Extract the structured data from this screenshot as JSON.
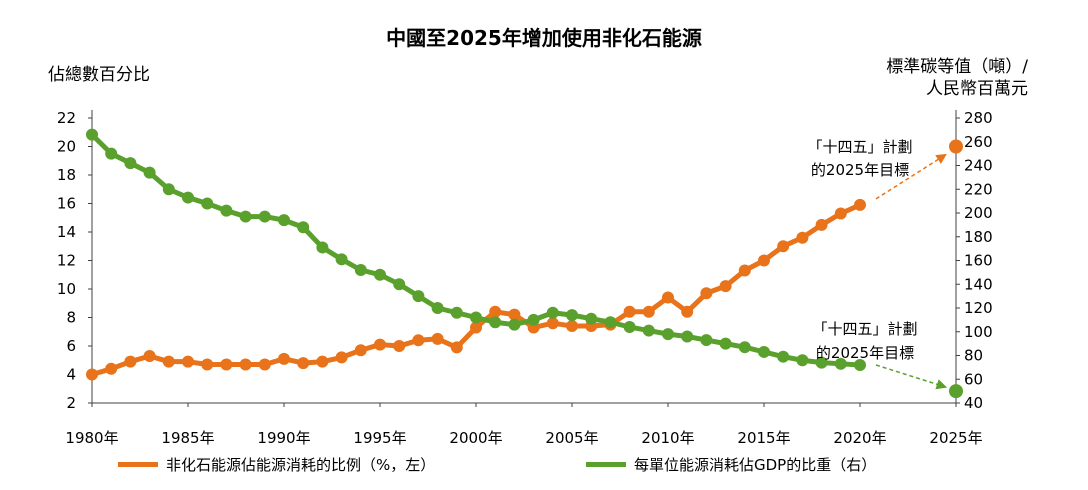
{
  "chart_data": {
    "type": "line",
    "title": "中國至2025年增加使用非化石能源",
    "ylabel_left": "佔總數百分比",
    "ylabel_right_line1": "標準碳等值（噸）/",
    "ylabel_right_line2": "人民幣百萬元",
    "y_left_range": [
      2,
      22
    ],
    "y_left_ticks": [
      "2",
      "4",
      "6",
      "8",
      "10",
      "12",
      "14",
      "16",
      "18",
      "20",
      "22"
    ],
    "y_right_range": [
      40,
      280
    ],
    "y_right_ticks": [
      "40",
      "60",
      "80",
      "100",
      "120",
      "140",
      "160",
      "180",
      "200",
      "220",
      "240",
      "260",
      "280"
    ],
    "x_range": [
      1980,
      2025
    ],
    "x_ticks": [
      {
        "year": 1980,
        "label": "1980年"
      },
      {
        "year": 1985,
        "label": "1985年"
      },
      {
        "year": 1990,
        "label": "1990年"
      },
      {
        "year": 1995,
        "label": "1995年"
      },
      {
        "year": 2000,
        "label": "2000年"
      },
      {
        "year": 2005,
        "label": "2005年"
      },
      {
        "year": 2010,
        "label": "2010年"
      },
      {
        "year": 2015,
        "label": "2015年"
      },
      {
        "year": 2020,
        "label": "2020年"
      },
      {
        "year": 2025,
        "label": "2025年"
      }
    ],
    "series": [
      {
        "name": "非化石能源佔能源消耗的比例（%，左）",
        "axis": "left",
        "color": "#E8731A",
        "x": [
          1980,
          1981,
          1982,
          1983,
          1984,
          1985,
          1986,
          1987,
          1988,
          1989,
          1990,
          1991,
          1992,
          1993,
          1994,
          1995,
          1996,
          1997,
          1998,
          1999,
          2000,
          2001,
          2002,
          2003,
          2004,
          2005,
          2006,
          2007,
          2008,
          2009,
          2010,
          2011,
          2012,
          2013,
          2014,
          2015,
          2016,
          2017,
          2018,
          2019,
          2020
        ],
        "values": [
          4.0,
          4.4,
          4.9,
          5.3,
          4.9,
          4.9,
          4.7,
          4.7,
          4.7,
          4.7,
          5.1,
          4.8,
          4.9,
          5.2,
          5.7,
          6.1,
          6.0,
          6.4,
          6.5,
          5.9,
          7.3,
          8.4,
          8.2,
          7.3,
          7.6,
          7.4,
          7.4,
          7.5,
          8.4,
          8.4,
          9.4,
          8.4,
          9.7,
          10.2,
          11.3,
          12.0,
          13.0,
          13.6,
          14.5,
          15.3,
          15.9
        ],
        "target": {
          "x": 2025,
          "value": 20
        }
      },
      {
        "name": "每單位能源消耗佔GDP的比重（右）",
        "axis": "right",
        "color": "#5AA02C",
        "x": [
          1980,
          1981,
          1982,
          1983,
          1984,
          1985,
          1986,
          1987,
          1988,
          1989,
          1990,
          1991,
          1992,
          1993,
          1994,
          1995,
          1996,
          1997,
          1998,
          1999,
          2000,
          2001,
          2002,
          2003,
          2004,
          2005,
          2006,
          2007,
          2008,
          2009,
          2010,
          2011,
          2012,
          2013,
          2014,
          2015,
          2016,
          2017,
          2018,
          2019,
          2020
        ],
        "values": [
          266,
          250,
          242,
          234,
          220,
          213,
          208,
          202,
          197,
          197,
          194,
          188,
          171,
          161,
          152,
          148,
          140,
          130,
          120,
          116,
          112,
          108,
          106,
          110,
          116,
          114,
          111,
          108,
          104,
          101,
          98,
          96,
          93,
          90,
          87,
          83,
          79,
          76,
          74,
          73,
          72
        ],
        "target": {
          "x": 2025,
          "value": 50
        }
      }
    ],
    "annotations": [
      {
        "line1": "「十四五」計劃",
        "line2": "的2025年目標"
      },
      {
        "line1": "「十四五」計劃",
        "line2": "的2025年目標"
      }
    ]
  }
}
